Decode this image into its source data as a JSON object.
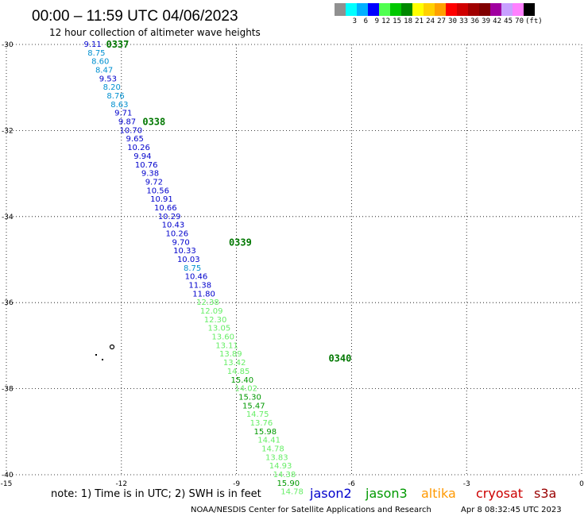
{
  "header": {
    "title": "00:00 – 11:59 UTC 04/06/2023",
    "subtitle": "12 hour collection of altimeter wave heights"
  },
  "legend": {
    "colors": [
      "#909090",
      "#00ffff",
      "#00b0ff",
      "#0000ff",
      "#50ff50",
      "#00c800",
      "#008800",
      "#ffff00",
      "#ffd000",
      "#ffa000",
      "#ff0000",
      "#d00000",
      "#a00000",
      "#800000",
      "#a000a0",
      "#c8a0ff",
      "#ff80ff",
      "#000000"
    ],
    "labels": [
      "3",
      "6",
      "9",
      "12",
      "15",
      "18",
      "21",
      "24",
      "27",
      "30",
      "33",
      "36",
      "39",
      "42",
      "45",
      "70"
    ],
    "unit": "(ft)"
  },
  "footer": {
    "note": "note:  1) Time is in UTC;  2) SWH is in feet",
    "credit": "NOAA/NESDIS Center for Satellite Applications and Research",
    "timestamp": "Apr  8 08:32:45 UTC 2023"
  },
  "chart_data": {
    "type": "scatter",
    "xlim": [
      -15,
      0
    ],
    "ylim": [
      -40,
      -30
    ],
    "x_ticks": [
      -15,
      -12,
      -9,
      -6,
      -3,
      0
    ],
    "y_ticks": [
      -40,
      -38,
      -36,
      -34,
      -32,
      -30
    ],
    "x_tick_labels": [
      "-15",
      "-12",
      "-9",
      "-6",
      "-3",
      "0"
    ],
    "y_tick_labels": [
      "-40",
      "-38",
      "-36",
      "-34",
      "-32",
      "-30"
    ],
    "grid": true,
    "satellites": [
      {
        "name": "jason2",
        "color": "#0000cc"
      },
      {
        "name": "jason3",
        "color": "#009900"
      },
      {
        "name": "altika",
        "color": "#ff9900"
      },
      {
        "name": "cryosat",
        "color": "#cc0000"
      },
      {
        "name": "s3a",
        "color": "#990000"
      }
    ],
    "time_labels": [
      {
        "text": "0337",
        "lon": -12.4,
        "lat": -30.0
      },
      {
        "text": "0338",
        "lon": -11.45,
        "lat": -31.8
      },
      {
        "text": "0339",
        "lon": -9.2,
        "lat": -34.6
      },
      {
        "text": "0340",
        "lon": -6.6,
        "lat": -37.3
      }
    ],
    "points": [
      {
        "lon": -12.75,
        "lat": -30.0,
        "swh": "9.11",
        "color": "#0000cc"
      },
      {
        "lon": -12.65,
        "lat": -30.2,
        "swh": "8.75",
        "color": "#0090d0"
      },
      {
        "lon": -12.55,
        "lat": -30.4,
        "swh": "8.60",
        "color": "#0090d0"
      },
      {
        "lon": -12.45,
        "lat": -30.6,
        "swh": "8.47",
        "color": "#0090d0"
      },
      {
        "lon": -12.35,
        "lat": -30.8,
        "swh": "9.53",
        "color": "#0000cc"
      },
      {
        "lon": -12.25,
        "lat": -31.0,
        "swh": "8.20",
        "color": "#0090d0"
      },
      {
        "lon": -12.15,
        "lat": -31.2,
        "swh": "8.76",
        "color": "#0090d0"
      },
      {
        "lon": -12.05,
        "lat": -31.4,
        "swh": "8.63",
        "color": "#0090d0"
      },
      {
        "lon": -11.95,
        "lat": -31.6,
        "swh": "9.71",
        "color": "#0000cc"
      },
      {
        "lon": -11.85,
        "lat": -31.8,
        "swh": "9.87",
        "color": "#0000cc"
      },
      {
        "lon": -11.75,
        "lat": -32.0,
        "swh": "10.70",
        "color": "#0000cc"
      },
      {
        "lon": -11.65,
        "lat": -32.2,
        "swh": "9.65",
        "color": "#0000cc"
      },
      {
        "lon": -11.55,
        "lat": -32.4,
        "swh": "10.26",
        "color": "#0000cc"
      },
      {
        "lon": -11.45,
        "lat": -32.6,
        "swh": "9.94",
        "color": "#0000cc"
      },
      {
        "lon": -11.35,
        "lat": -32.8,
        "swh": "10.76",
        "color": "#0000cc"
      },
      {
        "lon": -11.25,
        "lat": -33.0,
        "swh": "9.38",
        "color": "#0000cc"
      },
      {
        "lon": -11.15,
        "lat": -33.2,
        "swh": "9.72",
        "color": "#0000cc"
      },
      {
        "lon": -11.05,
        "lat": -33.4,
        "swh": "10.56",
        "color": "#0000cc"
      },
      {
        "lon": -10.95,
        "lat": -33.6,
        "swh": "10.91",
        "color": "#0000cc"
      },
      {
        "lon": -10.85,
        "lat": -33.8,
        "swh": "10.66",
        "color": "#0000cc"
      },
      {
        "lon": -10.75,
        "lat": -34.0,
        "swh": "10.29",
        "color": "#0000cc"
      },
      {
        "lon": -10.65,
        "lat": -34.2,
        "swh": "10.43",
        "color": "#0000cc"
      },
      {
        "lon": -10.55,
        "lat": -34.4,
        "swh": "10.26",
        "color": "#0000cc"
      },
      {
        "lon": -10.45,
        "lat": -34.6,
        "swh": "9.70",
        "color": "#0000cc"
      },
      {
        "lon": -10.35,
        "lat": -34.8,
        "swh": "10.33",
        "color": "#0000cc"
      },
      {
        "lon": -10.25,
        "lat": -35.0,
        "swh": "10.03",
        "color": "#0000cc"
      },
      {
        "lon": -10.15,
        "lat": -35.2,
        "swh": "8.75",
        "color": "#0090d0"
      },
      {
        "lon": -10.05,
        "lat": -35.4,
        "swh": "10.46",
        "color": "#0000cc"
      },
      {
        "lon": -9.95,
        "lat": -35.6,
        "swh": "11.38",
        "color": "#0000cc"
      },
      {
        "lon": -9.85,
        "lat": -35.8,
        "swh": "11.80",
        "color": "#0000cc"
      },
      {
        "lon": -9.75,
        "lat": -36.0,
        "swh": "12.38",
        "color": "#66ee66"
      },
      {
        "lon": -9.65,
        "lat": -36.2,
        "swh": "12.09",
        "color": "#66ee66"
      },
      {
        "lon": -9.55,
        "lat": -36.4,
        "swh": "12.30",
        "color": "#66ee66"
      },
      {
        "lon": -9.45,
        "lat": -36.6,
        "swh": "13.05",
        "color": "#66ee66"
      },
      {
        "lon": -9.35,
        "lat": -36.8,
        "swh": "13.60",
        "color": "#66ee66"
      },
      {
        "lon": -9.25,
        "lat": -37.0,
        "swh": "13.11",
        "color": "#66ee66"
      },
      {
        "lon": -9.15,
        "lat": -37.2,
        "swh": "13.89",
        "color": "#66ee66"
      },
      {
        "lon": -9.05,
        "lat": -37.4,
        "swh": "13.42",
        "color": "#66ee66"
      },
      {
        "lon": -8.95,
        "lat": -37.6,
        "swh": "14.85",
        "color": "#66ee66"
      },
      {
        "lon": -8.85,
        "lat": -37.8,
        "swh": "15.40",
        "color": "#009900"
      },
      {
        "lon": -8.75,
        "lat": -38.0,
        "swh": "14.02",
        "color": "#66ee66"
      },
      {
        "lon": -8.65,
        "lat": -38.2,
        "swh": "15.30",
        "color": "#009900"
      },
      {
        "lon": -8.55,
        "lat": -38.4,
        "swh": "15.47",
        "color": "#009900"
      },
      {
        "lon": -8.45,
        "lat": -38.6,
        "swh": "14.75",
        "color": "#66ee66"
      },
      {
        "lon": -8.35,
        "lat": -38.8,
        "swh": "13.76",
        "color": "#66ee66"
      },
      {
        "lon": -8.25,
        "lat": -39.0,
        "swh": "15.98",
        "color": "#009900"
      },
      {
        "lon": -8.15,
        "lat": -39.2,
        "swh": "14.41",
        "color": "#66ee66"
      },
      {
        "lon": -8.05,
        "lat": -39.4,
        "swh": "14.78",
        "color": "#66ee66"
      },
      {
        "lon": -7.95,
        "lat": -39.6,
        "swh": "13.83",
        "color": "#66ee66"
      },
      {
        "lon": -7.85,
        "lat": -39.8,
        "swh": "14.93",
        "color": "#66ee66"
      },
      {
        "lon": -7.75,
        "lat": -40.0,
        "swh": "14.38",
        "color": "#66ee66"
      },
      {
        "lon": -7.65,
        "lat": -40.2,
        "swh": "15.90",
        "color": "#009900"
      },
      {
        "lon": -7.55,
        "lat": -40.4,
        "swh": "14.78",
        "color": "#66ee66"
      }
    ]
  }
}
